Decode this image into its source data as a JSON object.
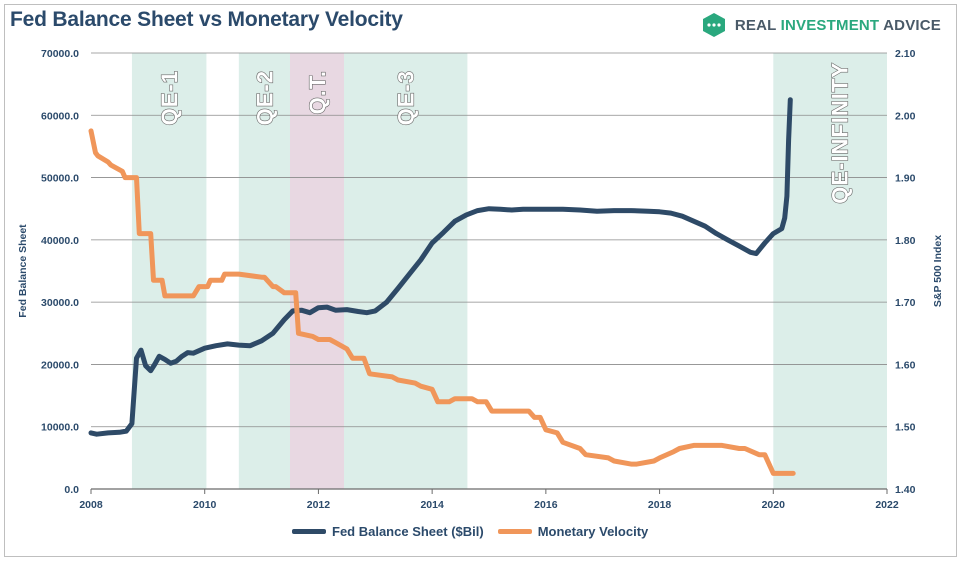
{
  "title": "Fed Balance Sheet vs Monetary Velocity",
  "brand": {
    "name_part1": "REAL ",
    "name_part2": "INVESTMENT",
    "name_part3": " ADVICE"
  },
  "colors": {
    "fed": "#2e4a67",
    "velocity": "#f0965a",
    "band_qe": "#dceee9",
    "band_qt": "#e8d8e2",
    "grid": "#8a8a8a"
  },
  "chart_data": {
    "type": "line",
    "title": "Fed Balance Sheet vs Monetary Velocity",
    "xlabel": "",
    "ylabel_left": "Fed Balance Sheet",
    "ylabel_right": "S&P 500 Index",
    "xlim": [
      2008,
      2022
    ],
    "ylim_left": [
      0,
      70000
    ],
    "ylim_right": [
      1.4,
      2.1
    ],
    "x_ticks": [
      "2008",
      "2010",
      "2012",
      "2014",
      "2016",
      "2018",
      "2020",
      "2022"
    ],
    "y_left_ticks": [
      "0.0",
      "10000.0",
      "20000.0",
      "30000.0",
      "40000.0",
      "50000.0",
      "60000.0",
      "70000.0"
    ],
    "y_right_ticks": [
      "1.40",
      "1.50",
      "1.60",
      "1.70",
      "1.80",
      "1.90",
      "2.00",
      "2.10"
    ],
    "grid": "horizontal",
    "legend_position": "bottom",
    "bands": [
      {
        "label": "QE-1",
        "start": 2008.72,
        "end": 2010.03,
        "kind": "qe"
      },
      {
        "label": "QE-2",
        "start": 2010.6,
        "end": 2011.5,
        "kind": "qe"
      },
      {
        "label": "Q.T.",
        "start": 2011.5,
        "end": 2012.45,
        "kind": "qt"
      },
      {
        "label": "QE-3",
        "start": 2012.45,
        "end": 2014.62,
        "kind": "qe"
      },
      {
        "label": "QE-INFINITY",
        "start": 2020.0,
        "end": 2022.1,
        "kind": "qe"
      }
    ],
    "series": [
      {
        "name": "Fed Balance Sheet ($Bil)",
        "axis": "left",
        "x": [
          2008.0,
          2008.1,
          2008.3,
          2008.5,
          2008.62,
          2008.72,
          2008.8,
          2008.88,
          2008.96,
          2009.05,
          2009.12,
          2009.2,
          2009.3,
          2009.4,
          2009.5,
          2009.6,
          2009.7,
          2009.8,
          2009.9,
          2010.0,
          2010.2,
          2010.4,
          2010.6,
          2010.8,
          2011.0,
          2011.2,
          2011.4,
          2011.55,
          2011.7,
          2011.85,
          2012.0,
          2012.15,
          2012.3,
          2012.5,
          2012.7,
          2012.85,
          2013.0,
          2013.2,
          2013.4,
          2013.6,
          2013.8,
          2014.0,
          2014.2,
          2014.4,
          2014.6,
          2014.8,
          2015.0,
          2015.2,
          2015.4,
          2015.6,
          2015.8,
          2016.0,
          2016.3,
          2016.6,
          2016.9,
          2017.2,
          2017.5,
          2017.8,
          2018.0,
          2018.2,
          2018.4,
          2018.6,
          2018.8,
          2019.0,
          2019.2,
          2019.4,
          2019.6,
          2019.7,
          2019.85,
          2020.0,
          2020.15,
          2020.2,
          2020.24,
          2020.27,
          2020.3
        ],
        "values": [
          9000,
          8800,
          9000,
          9100,
          9300,
          10500,
          21000,
          22300,
          19800,
          19000,
          20000,
          21300,
          20800,
          20200,
          20500,
          21300,
          21900,
          21800,
          22200,
          22600,
          23000,
          23300,
          23100,
          23000,
          23800,
          25000,
          27200,
          28600,
          28700,
          28300,
          29100,
          29200,
          28700,
          28800,
          28500,
          28300,
          28600,
          30000,
          32200,
          34500,
          36800,
          39500,
          41200,
          43000,
          44000,
          44700,
          45000,
          44900,
          44800,
          44900,
          44900,
          44900,
          44900,
          44800,
          44600,
          44700,
          44700,
          44600,
          44500,
          44300,
          43800,
          43000,
          42200,
          41000,
          40000,
          39000,
          38000,
          37800,
          39500,
          41000,
          41800,
          43500,
          47000,
          56000,
          62500
        ]
      },
      {
        "name": "Monetary Velocity",
        "axis": "right",
        "x": [
          2008.0,
          2008.08,
          2008.12,
          2008.3,
          2008.35,
          2008.55,
          2008.6,
          2008.8,
          2008.85,
          2009.05,
          2009.1,
          2009.25,
          2009.3,
          2009.8,
          2009.9,
          2010.05,
          2010.1,
          2010.3,
          2010.35,
          2010.55,
          2010.6,
          2011.0,
          2011.05,
          2011.2,
          2011.25,
          2011.4,
          2011.45,
          2011.6,
          2011.65,
          2011.9,
          2012.0,
          2012.2,
          2012.3,
          2012.5,
          2012.6,
          2012.8,
          2012.9,
          2013.3,
          2013.4,
          2013.7,
          2013.8,
          2014.0,
          2014.1,
          2014.3,
          2014.4,
          2014.7,
          2014.8,
          2014.95,
          2015.05,
          2015.2,
          2015.3,
          2015.7,
          2015.8,
          2015.9,
          2016.0,
          2016.2,
          2016.3,
          2016.6,
          2016.7,
          2017.1,
          2017.2,
          2017.5,
          2017.6,
          2017.9,
          2018.0,
          2018.25,
          2018.35,
          2018.6,
          2018.8,
          2019.0,
          2019.1,
          2019.4,
          2019.5,
          2019.75,
          2019.85,
          2020.0,
          2020.35
        ],
        "values": [
          1.975,
          1.94,
          1.935,
          1.925,
          1.92,
          1.91,
          1.9,
          1.9,
          1.81,
          1.81,
          1.735,
          1.735,
          1.71,
          1.71,
          1.725,
          1.725,
          1.735,
          1.735,
          1.745,
          1.745,
          1.745,
          1.74,
          1.74,
          1.725,
          1.725,
          1.715,
          1.715,
          1.715,
          1.65,
          1.645,
          1.64,
          1.64,
          1.635,
          1.625,
          1.61,
          1.61,
          1.585,
          1.58,
          1.575,
          1.57,
          1.565,
          1.56,
          1.54,
          1.54,
          1.545,
          1.545,
          1.54,
          1.54,
          1.525,
          1.525,
          1.525,
          1.525,
          1.515,
          1.515,
          1.495,
          1.49,
          1.475,
          1.465,
          1.455,
          1.45,
          1.445,
          1.44,
          1.44,
          1.445,
          1.45,
          1.46,
          1.465,
          1.47,
          1.47,
          1.47,
          1.47,
          1.465,
          1.465,
          1.455,
          1.455,
          1.425,
          1.425
        ]
      }
    ]
  }
}
